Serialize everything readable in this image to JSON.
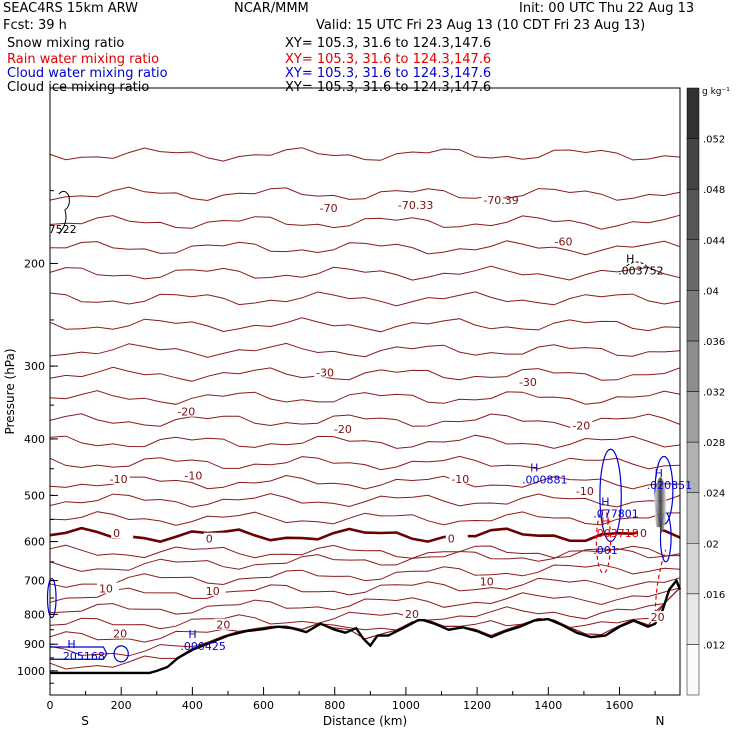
{
  "header": {
    "model": "SEAC4RS 15km ARW",
    "forecast": "Fcst:    39 h",
    "center": "NCAR/MMM",
    "init": "Init: 00 UTC Thu 22 Aug 13",
    "valid": "Valid: 15 UTC Fri 23 Aug 13 (10 CDT Fri 23 Aug 13)"
  },
  "fields": [
    {
      "name": "Snow mixing ratio",
      "xy": "XY= 105.3, 31.6 to 124.3,147.6",
      "color": "#000000"
    },
    {
      "name": "Rain water mixing ratio",
      "xy": "XY= 105.3, 31.6 to 124.3,147.6",
      "color": "#e00000"
    },
    {
      "name": "Cloud water mixing ratio",
      "xy": "XY= 105.3, 31.6 to 124.3,147.6",
      "color": "#0000d0"
    },
    {
      "name": "Cloud ice mixing ratio",
      "xy": "XY= 105.3, 31.6 to 124.3,147.6",
      "color": "#000000"
    }
  ],
  "chart_data": {
    "type": "contour",
    "xlabel": "Distance (km)",
    "ylabel": "Pressure (hPa)",
    "xlim": [
      0,
      1770
    ],
    "ylim": [
      1100,
      100
    ],
    "yscale": "log",
    "x_ticks": [
      0,
      200,
      400,
      600,
      800,
      1000,
      1200,
      1400,
      1600
    ],
    "y_ticks": [
      200,
      300,
      400,
      500,
      600,
      700,
      800,
      900,
      1000
    ],
    "direction_labels": {
      "left": "S",
      "right": "N"
    },
    "colorbar": {
      "unit": "g kg⁻¹",
      "ticks": [
        ".012",
        ".016",
        ".02",
        ".024",
        ".028",
        ".032",
        ".036",
        ".04",
        ".044",
        ".048",
        ".052"
      ]
    },
    "temperature_contours_color": "#8b1a1a",
    "freezing_level_value": "0",
    "temperature_labels": [
      {
        "text": "-70",
        "x": 780,
        "p": 162
      },
      {
        "text": "-70.33",
        "x": 1000,
        "p": 160
      },
      {
        "text": "-70.39",
        "x": 1240,
        "p": 157
      },
      {
        "text": "-60",
        "x": 1440,
        "p": 185
      },
      {
        "text": "-30",
        "x": 770,
        "p": 310
      },
      {
        "text": "-30",
        "x": 1340,
        "p": 322
      },
      {
        "text": "-20",
        "x": 380,
        "p": 362
      },
      {
        "text": "-20",
        "x": 820,
        "p": 388
      },
      {
        "text": "-20",
        "x": 1490,
        "p": 382
      },
      {
        "text": "-10",
        "x": 190,
        "p": 472
      },
      {
        "text": "-10",
        "x": 400,
        "p": 466
      },
      {
        "text": "-10",
        "x": 1150,
        "p": 472
      },
      {
        "text": "-10",
        "x": 1500,
        "p": 495
      },
      {
        "text": "0",
        "x": 200,
        "p": 585
      },
      {
        "text": "0",
        "x": 460,
        "p": 598
      },
      {
        "text": "0",
        "x": 1140,
        "p": 598
      },
      {
        "text": "0",
        "x": 1680,
        "p": 585
      },
      {
        "text": "10",
        "x": 160,
        "p": 728
      },
      {
        "text": "10",
        "x": 460,
        "p": 735
      },
      {
        "text": "10",
        "x": 1230,
        "p": 708
      },
      {
        "text": "20",
        "x": 200,
        "p": 870
      },
      {
        "text": "20",
        "x": 490,
        "p": 840
      },
      {
        "text": "20",
        "x": 1020,
        "p": 805
      },
      {
        "text": "20",
        "x": 1710,
        "p": 815
      }
    ],
    "extrema_labels": [
      {
        "text": "H",
        "value": ".000425",
        "x": 400,
        "p": 902,
        "color": "#0000d0"
      },
      {
        "text": "H",
        "value": ".205168",
        "x": 60,
        "p": 940,
        "color": "#0000d0"
      },
      {
        "text": "H",
        "value": ".003752",
        "x": 1630,
        "p": 205,
        "color": "#000000"
      },
      {
        "text": "H",
        "value": ".000881",
        "x": 1360,
        "p": 468,
        "color": "#0000d0"
      },
      {
        "text": "H",
        "value": ".077801",
        "x": 1560,
        "p": 535,
        "color": "#0000d0"
      },
      {
        "text": "H",
        "value": ".003718",
        "x": 1560,
        "p": 578,
        "color": "#e00000"
      },
      {
        "text": "",
        "value": ".001",
        "x": 1560,
        "p": 618,
        "color": "#0000d0"
      },
      {
        "text": "H",
        "value": ".020851",
        "x": 1710,
        "p": 478,
        "color": "#0000d0"
      },
      {
        "text": "",
        "value": "7522",
        "x": 30,
        "p": 174,
        "color": "#000000"
      }
    ],
    "terrain_pressure": {
      "x": [
        0,
        100,
        200,
        280,
        300,
        330,
        360,
        400,
        450,
        500,
        550,
        600,
        640,
        680,
        720,
        760,
        800,
        830,
        860,
        880,
        900,
        920,
        950,
        1000,
        1040,
        1080,
        1120,
        1160,
        1200,
        1240,
        1280,
        1320,
        1360,
        1400,
        1440,
        1480,
        1520,
        1560,
        1600,
        1640,
        1680,
        1700,
        1720,
        1740,
        1760,
        1770
      ],
      "p": [
        1008,
        1008,
        1008,
        1008,
        1000,
        985,
        950,
        920,
        895,
        870,
        855,
        848,
        840,
        845,
        858,
        830,
        850,
        860,
        845,
        880,
        905,
        870,
        870,
        840,
        815,
        830,
        850,
        842,
        855,
        875,
        855,
        840,
        820,
        815,
        835,
        860,
        875,
        870,
        840,
        820,
        840,
        830,
        790,
        725,
        700,
        725
      ]
    }
  }
}
